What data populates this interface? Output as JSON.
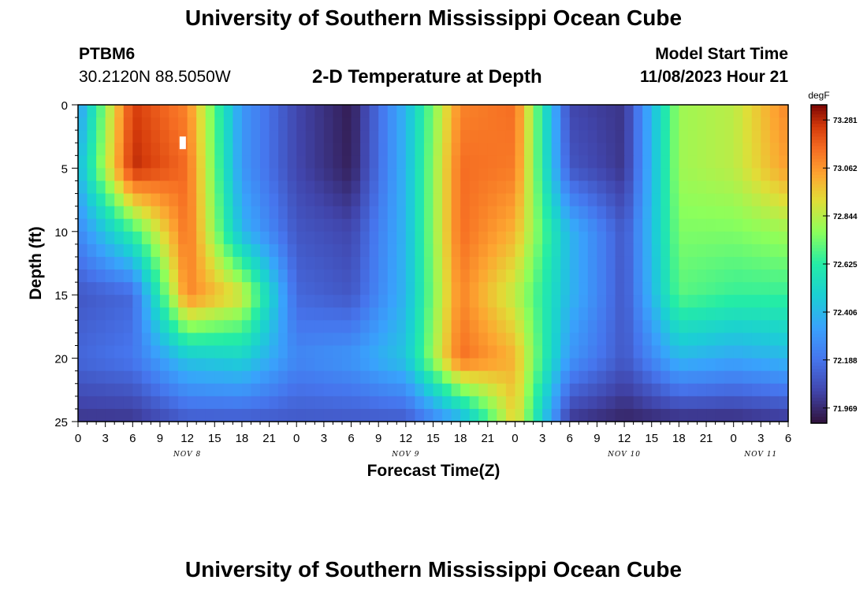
{
  "header": {
    "title": "University of Southern Mississippi Ocean Cube",
    "station": "PTBM6",
    "coords": "30.2120N  88.5050W",
    "subtitle": "2-D Temperature at Depth",
    "model_label": "Model Start Time",
    "model_time": "11/08/2023 Hour 21"
  },
  "footer": {
    "title": "University of Southern Mississippi Ocean Cube"
  },
  "chart_data": {
    "type": "heatmap",
    "title": "2-D Temperature at Depth",
    "xlabel": "Forecast Time(Z)",
    "ylabel": "Depth (ft)",
    "x_hours_range": [
      0,
      78
    ],
    "x_tick_labels": [
      "0",
      "3",
      "6",
      "9",
      "12",
      "15",
      "18",
      "21",
      "0",
      "3",
      "6",
      "9",
      "12",
      "15",
      "18",
      "21",
      "0",
      "3",
      "6",
      "9",
      "12",
      "15",
      "18",
      "21",
      "0",
      "3",
      "6"
    ],
    "day_labels": [
      {
        "label": "NOV 8",
        "hour": 12
      },
      {
        "label": "NOV 9",
        "hour": 36
      },
      {
        "label": "NOV 10",
        "hour": 60
      },
      {
        "label": "NOV 11",
        "hour": 75
      }
    ],
    "ylim": [
      0,
      25
    ],
    "y_ticks": [
      0,
      5,
      10,
      15,
      20,
      25
    ],
    "colorbar": {
      "unit": "degF",
      "min": 71.9,
      "max": 73.35,
      "tick_values": [
        73.281,
        73.062,
        72.844,
        72.625,
        72.406,
        72.188,
        71.969
      ],
      "tick_labels": [
        "73.281",
        "73.062",
        "72.844",
        "72.625",
        "72.406",
        "72.188",
        "71.969"
      ]
    },
    "grid": {
      "hours": [
        0,
        6,
        12,
        18,
        24,
        30,
        36,
        42,
        48,
        54,
        60,
        66,
        72,
        78
      ],
      "depths": [
        0,
        5,
        10,
        15,
        20,
        25
      ],
      "values": [
        [
          72.3,
          73.25,
          73.1,
          72.3,
          72.05,
          71.93,
          72.4,
          73.1,
          73.15,
          72.05,
          72.0,
          72.8,
          72.85,
          73.1
        ],
        [
          72.4,
          73.28,
          73.15,
          72.3,
          72.05,
          71.94,
          72.4,
          73.15,
          73.12,
          72.1,
          72.0,
          72.8,
          72.85,
          73.05
        ],
        [
          72.25,
          72.65,
          73.15,
          72.4,
          72.1,
          72.05,
          72.4,
          73.15,
          73.0,
          72.4,
          72.1,
          72.75,
          72.75,
          72.8
        ],
        [
          72.1,
          72.15,
          73.1,
          72.9,
          72.15,
          72.1,
          72.4,
          73.1,
          72.85,
          72.4,
          72.1,
          72.7,
          72.65,
          72.65
        ],
        [
          72.15,
          72.2,
          72.45,
          72.5,
          72.25,
          72.3,
          72.45,
          73.15,
          73.0,
          72.3,
          72.1,
          72.4,
          72.35,
          72.4
        ],
        [
          72.0,
          72.0,
          72.1,
          72.1,
          72.1,
          72.1,
          72.1,
          72.35,
          72.95,
          72.0,
          71.95,
          71.97,
          71.97,
          72.0
        ]
      ]
    },
    "marker": {
      "hour": 11.5,
      "depth": 3.0,
      "label": "observation"
    }
  }
}
